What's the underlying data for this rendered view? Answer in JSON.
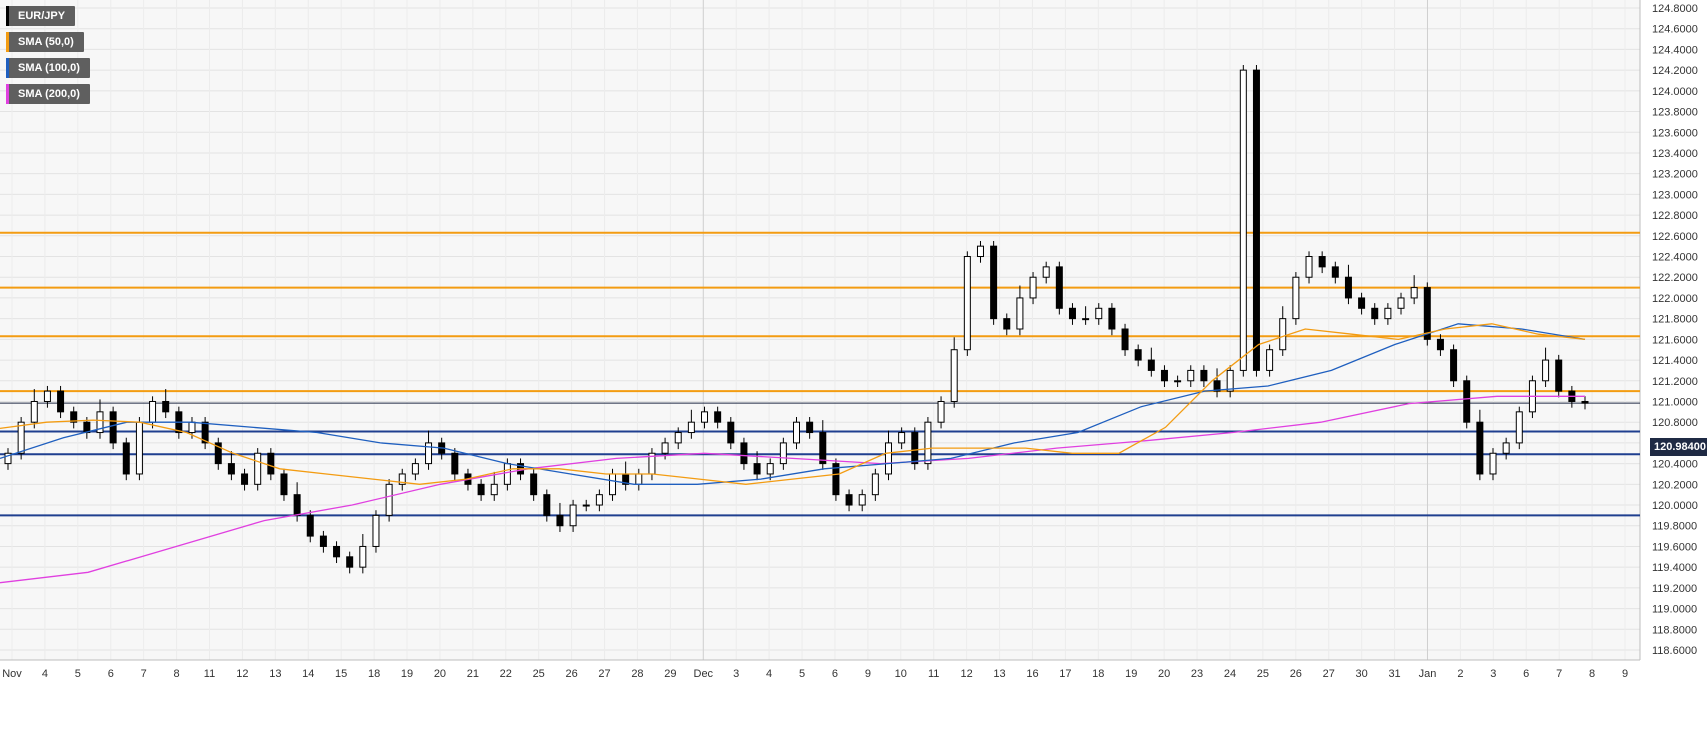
{
  "symbol": "EUR/JPY",
  "legend": [
    {
      "label": "EUR/JPY",
      "color": "#000000"
    },
    {
      "label": "SMA (50,0)",
      "color": "#f39c12"
    },
    {
      "label": "SMA (100,0)",
      "color": "#1f5fbf"
    },
    {
      "label": "SMA (200,0)",
      "color": "#e040e0"
    }
  ],
  "current_price_label": "120.98400",
  "chart_data": {
    "type": "candlestick",
    "ylim": [
      118.6,
      124.8
    ],
    "y_ticks": [
      "124.8000",
      "124.6000",
      "124.4000",
      "124.2000",
      "124.0000",
      "123.8000",
      "123.6000",
      "123.4000",
      "123.2000",
      "123.0000",
      "122.8000",
      "122.6000",
      "122.4000",
      "122.2000",
      "122.0000",
      "121.8000",
      "121.6000",
      "121.4000",
      "121.2000",
      "121.0000",
      "120.8000",
      "120.6000",
      "120.4000",
      "120.2000",
      "120.0000",
      "119.8000",
      "119.6000",
      "119.4000",
      "119.2000",
      "119.0000",
      "118.8000",
      "118.6000"
    ],
    "x_labels": [
      "Nov",
      "4",
      "5",
      "6",
      "7",
      "8",
      "11",
      "12",
      "13",
      "14",
      "15",
      "18",
      "19",
      "20",
      "21",
      "22",
      "25",
      "26",
      "27",
      "28",
      "29",
      "Dec",
      "3",
      "4",
      "5",
      "6",
      "9",
      "10",
      "11",
      "12",
      "13",
      "16",
      "17",
      "18",
      "19",
      "20",
      "23",
      "24",
      "25",
      "26",
      "27",
      "30",
      "31",
      "Jan",
      "2",
      "3",
      "6",
      "7",
      "8",
      "9"
    ],
    "horizontal_levels": [
      {
        "value": 122.63,
        "color": "#f39c12"
      },
      {
        "value": 122.1,
        "color": "#f39c12"
      },
      {
        "value": 121.63,
        "color": "#f39c12"
      },
      {
        "value": 121.1,
        "color": "#f39c12"
      },
      {
        "value": 120.71,
        "color": "#1f3f8f"
      },
      {
        "value": 120.49,
        "color": "#1f3f8f"
      },
      {
        "value": 119.9,
        "color": "#1f3f8f"
      }
    ],
    "current_price": 120.984,
    "close_series": [
      120.5,
      120.8,
      121.0,
      121.1,
      120.9,
      120.8,
      120.7,
      120.9,
      120.6,
      120.3,
      120.8,
      121.0,
      120.9,
      120.7,
      120.8,
      120.6,
      120.4,
      120.3,
      120.2,
      120.5,
      120.3,
      120.1,
      119.9,
      119.7,
      119.6,
      119.5,
      119.4,
      119.6,
      119.9,
      120.2,
      120.3,
      120.4,
      120.6,
      120.5,
      120.3,
      120.2,
      120.1,
      120.2,
      120.4,
      120.3,
      120.1,
      119.9,
      119.8,
      120.0,
      120.0,
      120.1,
      120.3,
      120.2,
      120.3,
      120.5,
      120.6,
      120.7,
      120.8,
      120.9,
      120.8,
      120.6,
      120.4,
      120.3,
      120.4,
      120.6,
      120.8,
      120.7,
      120.4,
      120.1,
      120.0,
      120.1,
      120.3,
      120.6,
      120.7,
      120.4,
      120.8,
      121.0,
      121.5,
      122.4,
      122.5,
      121.8,
      121.7,
      122.0,
      122.2,
      122.3,
      121.9,
      121.8,
      121.8,
      121.9,
      121.7,
      121.5,
      121.4,
      121.3,
      121.2,
      121.2,
      121.3,
      121.2,
      121.1,
      121.3,
      124.2,
      121.3,
      121.5,
      121.8,
      122.2,
      122.4,
      122.3,
      122.2,
      122.0,
      121.9,
      121.8,
      121.9,
      122.0,
      122.1,
      121.6,
      121.5,
      121.2,
      120.8,
      120.3,
      120.5,
      120.6,
      120.9,
      121.2,
      121.4,
      121.1,
      121.0,
      120.984
    ],
    "sma_50": [
      120.74,
      120.8,
      120.82,
      120.8,
      120.7,
      120.5,
      120.35,
      120.3,
      120.25,
      120.2,
      120.25,
      120.35,
      120.35,
      120.3,
      120.3,
      120.25,
      120.2,
      120.25,
      120.3,
      120.5,
      120.55,
      120.55,
      120.55,
      120.5,
      120.5,
      120.75,
      121.2,
      121.55,
      121.7,
      121.65,
      121.6,
      121.7,
      121.75,
      121.65,
      121.6
    ],
    "sma_100": [
      120.45,
      120.65,
      120.8,
      120.8,
      120.75,
      120.7,
      120.6,
      120.55,
      120.4,
      120.3,
      120.2,
      120.2,
      120.25,
      120.35,
      120.4,
      120.45,
      120.6,
      120.7,
      120.95,
      121.1,
      121.15,
      121.3,
      121.55,
      121.75,
      121.7,
      121.6
    ],
    "sma_200": [
      119.25,
      119.35,
      119.6,
      119.85,
      120.0,
      120.2,
      120.35,
      120.45,
      120.5,
      120.45,
      120.4,
      120.45,
      120.55,
      120.62,
      120.7,
      120.8,
      120.98,
      121.05,
      121.05
    ]
  }
}
